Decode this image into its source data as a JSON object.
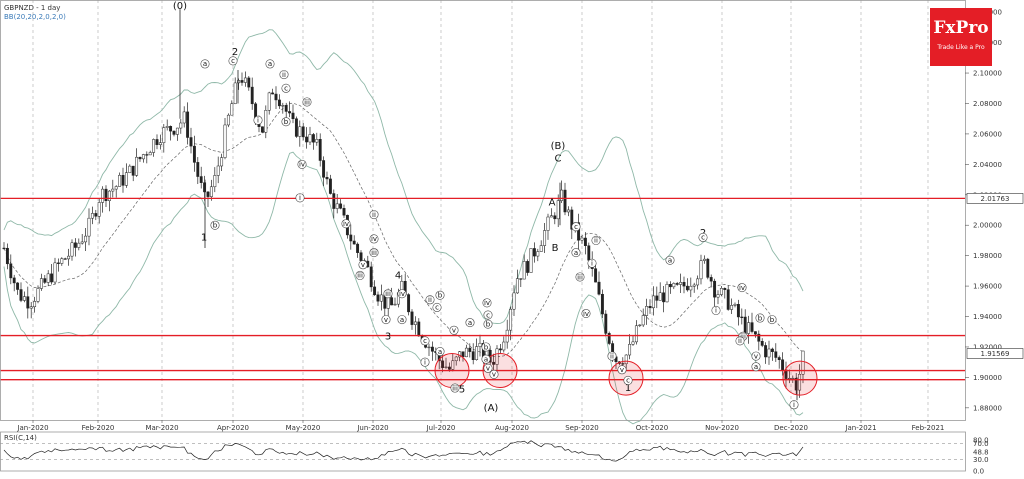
{
  "header": {
    "symbol": "GBPNZD - 1 day",
    "indicator": "BB(20,20,2,0,2,0)"
  },
  "logo": {
    "name": "FxPro",
    "tagline": "Trade Like a Pro",
    "color": "#e41e26"
  },
  "colors": {
    "candle": "#222222",
    "bb": "#8fb8a8",
    "ma": "#666666",
    "level": "#e41e26",
    "circle": "#e41e26",
    "grid": "#aaaaaa"
  },
  "chart_data": {
    "type": "candlestick",
    "title": "GBPNZD - 1 day",
    "ylim": [
      1.872,
      2.148
    ],
    "y_ticks": [
      "2.14000",
      "2.12000",
      "2.10000",
      "2.08000",
      "2.06000",
      "2.04000",
      "2.02000",
      "2.00000",
      "1.98000",
      "1.96000",
      "1.94000",
      "1.92000",
      "1.90000",
      "1.88000"
    ],
    "x_ticks": [
      "Jan-2020",
      "Feb-2020",
      "Mar-2020",
      "Apr-2020",
      "May-2020",
      "Jun-2020",
      "Jul-2020",
      "Aug-2020",
      "Sep-2020",
      "Oct-2020",
      "Nov-2020",
      "Dec-2020",
      "Jan-2021",
      "Feb-2021"
    ],
    "price_labels": [
      "2.01763",
      "1.91569"
    ],
    "current_price": 1.91569,
    "levels": [
      2.01763,
      1.9275,
      1.9045,
      1.8985
    ],
    "circles": [
      {
        "date": "Jul-2020 (early)",
        "price": 1.9045
      },
      {
        "date": "Jul-2020 (late)",
        "price": 1.9045
      },
      {
        "date": "Sep-2020",
        "price": 1.8995
      },
      {
        "date": "Dec-2020",
        "price": 1.8995
      }
    ],
    "wave_labels": [
      {
        "text": "(0)",
        "price": 2.142
      },
      {
        "text": "2",
        "price": 2.112
      },
      {
        "text": "1",
        "price": 1.99
      },
      {
        "text": "4",
        "price": 1.965
      },
      {
        "text": "3",
        "price": 1.925
      },
      {
        "text": "5",
        "price": 1.89
      },
      {
        "text": "(A)",
        "price": 1.878
      },
      {
        "text": "(B)",
        "price": 2.05
      },
      {
        "text": "C",
        "price": 2.042
      },
      {
        "text": "A",
        "price": 2.013
      },
      {
        "text": "B",
        "price": 1.983
      },
      {
        "text": "1",
        "price": 1.891
      },
      {
        "text": "2",
        "price": 1.993
      }
    ],
    "small_labels": [
      {
        "text": "a",
        "price": 2.106
      },
      {
        "text": "c",
        "price": 2.108
      },
      {
        "text": "b",
        "price": 2.0
      },
      {
        "text": "(a)",
        "price": 2.106
      },
      {
        "text": "(b)",
        "price": 2.068
      },
      {
        "text": "(c)",
        "price": 2.09
      },
      {
        "text": "(i)",
        "price": 2.069
      },
      {
        "text": "(ii)",
        "price": 2.099
      },
      {
        "text": "(iii)",
        "price": 2.081
      },
      {
        "text": "(iv)",
        "price": 2.04
      },
      {
        "text": "(i)",
        "price": 2.018
      },
      {
        "text": "(ii)",
        "price": 2.007
      },
      {
        "text": "(iii)",
        "price": 1.982
      },
      {
        "text": "(iv)",
        "price": 2.001
      },
      {
        "text": "(v)",
        "price": 1.974
      },
      {
        "text": "(iii)",
        "price": 1.967
      },
      {
        "text": "(iv)",
        "price": 1.991
      },
      {
        "text": "(v)",
        "price": 1.938
      },
      {
        "text": "(iii)",
        "price": 1.955
      },
      {
        "text": "(iv)",
        "price": 1.955
      },
      {
        "text": "a",
        "price": 1.938
      },
      {
        "text": "b",
        "price": 1.954
      },
      {
        "text": "c",
        "price": 1.946
      },
      {
        "text": "(v)",
        "price": 1.931
      },
      {
        "text": "(i)",
        "price": 1.91
      },
      {
        "text": "(ii)",
        "price": 1.951
      },
      {
        "text": "(c)",
        "price": 1.924
      },
      {
        "text": "(a)",
        "price": 1.917
      },
      {
        "text": "b",
        "price": 1.935
      },
      {
        "text": "(v)",
        "price": 1.906
      },
      {
        "text": "(iii)",
        "price": 1.893
      },
      {
        "text": "(a)",
        "price": 1.936
      },
      {
        "text": "(b)",
        "price": 1.92
      },
      {
        "text": "(c)",
        "price": 1.941
      },
      {
        "text": "(iv)",
        "price": 1.949
      },
      {
        "text": "(a)",
        "price": 1.912
      },
      {
        "text": "v",
        "price": 1.902
      },
      {
        "text": "a",
        "price": 1.982
      },
      {
        "text": "c",
        "price": 1.999
      },
      {
        "text": "(i)",
        "price": 1.975
      },
      {
        "text": "(ii)",
        "price": 1.99
      },
      {
        "text": "(iii)",
        "price": 1.966
      },
      {
        "text": "(iv)",
        "price": 1.942
      },
      {
        "text": "(v)",
        "price": 1.905
      },
      {
        "text": "c",
        "price": 1.898
      },
      {
        "text": "(ii)",
        "price": 1.914
      },
      {
        "text": "a",
        "price": 1.977
      },
      {
        "text": "c",
        "price": 1.992
      },
      {
        "text": "(i)",
        "price": 1.944
      },
      {
        "text": "(iv)",
        "price": 1.959
      },
      {
        "text": "(iii)",
        "price": 1.927
      },
      {
        "text": "b",
        "price": 1.938
      },
      {
        "text": "(v)",
        "price": 1.914
      },
      {
        "text": "a",
        "price": 1.907
      },
      {
        "text": "b",
        "price": 1.939
      },
      {
        "text": "(ii)",
        "price": 1.924
      },
      {
        "text": "(i)",
        "price": 1.882
      }
    ],
    "rsi": {
      "label": "RSI(C,14)",
      "ylim": [
        0,
        100
      ],
      "levels": [
        70,
        30
      ],
      "tick_labels": [
        "80.0",
        "70.0",
        "48.8",
        "30.0",
        "0.0"
      ],
      "current": 48.8
    }
  }
}
